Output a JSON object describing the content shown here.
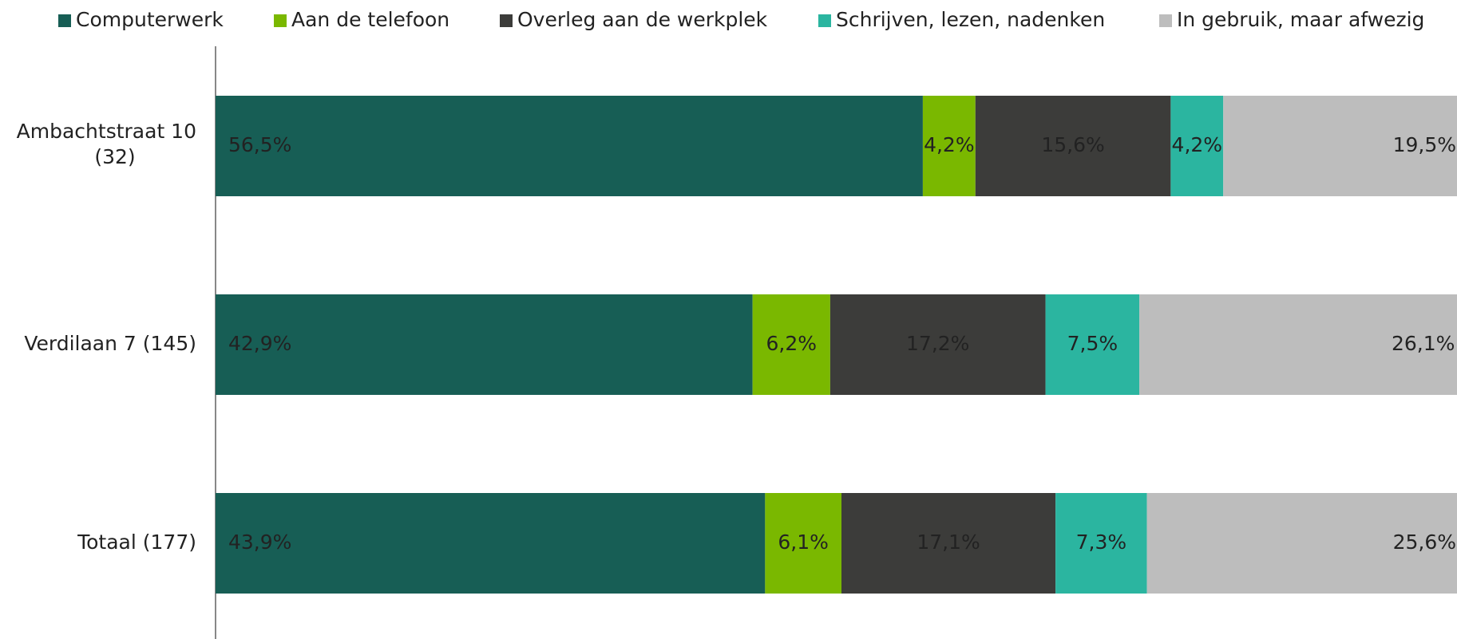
{
  "chart_data": {
    "type": "stacked_barh",
    "categories": [
      "Ambachtstraat 10 (32)",
      "Verdilaan 7 (145)",
      "Totaal (177)"
    ],
    "series": [
      {
        "name": "Computerwerk",
        "color": "#175e55",
        "values": [
          56.5,
          42.9,
          43.9
        ],
        "value_labels": [
          "56,5%",
          "42,9%",
          "43,9%"
        ]
      },
      {
        "name": "Aan de telefoon",
        "color": "#7ab800",
        "values": [
          4.2,
          6.2,
          6.1
        ],
        "value_labels": [
          "4,2%",
          "6,2%",
          "6,1%"
        ]
      },
      {
        "name": "Overleg aan de werkplek",
        "color": "#3c3c3a",
        "values": [
          15.6,
          17.2,
          17.1
        ],
        "value_labels": [
          "15,6%",
          "17,2%",
          "17,1%"
        ]
      },
      {
        "name": "Schrijven, lezen, nadenken",
        "color": "#2bb5a0",
        "values": [
          4.2,
          7.5,
          7.3
        ],
        "value_labels": [
          "4,2%",
          "7,5%",
          "7,3%"
        ]
      },
      {
        "name": "In gebruik, maar afwezig",
        "color": "#bdbdbd",
        "values": [
          19.5,
          26.1,
          25.6
        ],
        "value_labels": [
          "19,5%",
          "26,1%",
          "25,6%"
        ]
      }
    ],
    "xlim": [
      0,
      100
    ],
    "legend": "top"
  }
}
